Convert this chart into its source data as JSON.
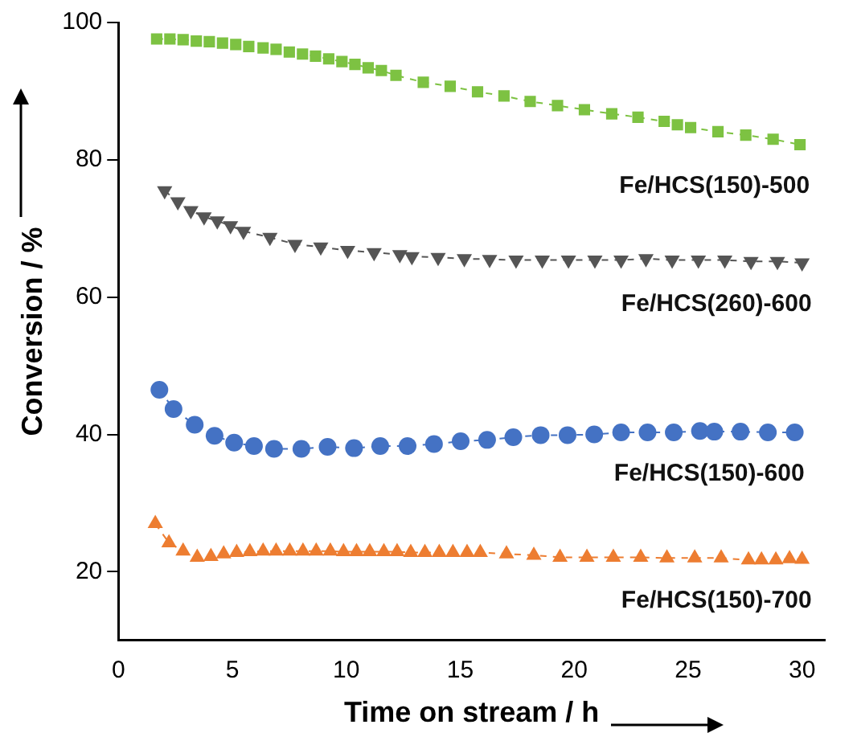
{
  "chart_data": {
    "type": "line",
    "xlabel": "Time on stream / h",
    "ylabel": "Conversion / %",
    "xlim": [
      0,
      31
    ],
    "ylim": [
      10,
      100
    ],
    "xticks": [
      0,
      5,
      10,
      15,
      20,
      25,
      30
    ],
    "yticks": [
      20,
      40,
      60,
      80,
      100
    ],
    "grid": false,
    "legend": false,
    "line_style": "dashed",
    "series": [
      {
        "name": "Fe/HCS(150)-500",
        "color": "#7dc242",
        "marker": "square",
        "x": [
          1.68,
          2.26,
          2.84,
          3.42,
          3.99,
          4.57,
          5.15,
          5.72,
          6.35,
          6.92,
          7.5,
          8.08,
          8.65,
          9.23,
          9.81,
          10.38,
          10.96,
          11.54,
          12.18,
          13.38,
          14.56,
          15.76,
          16.92,
          18.07,
          19.27,
          20.45,
          21.65,
          22.8,
          23.95,
          24.53,
          25.11,
          26.31,
          27.53,
          28.73,
          29.91
        ],
        "values": [
          97.6,
          97.6,
          97.5,
          97.3,
          97.2,
          97.0,
          96.8,
          96.5,
          96.3,
          96.1,
          95.7,
          95.4,
          95.1,
          94.7,
          94.3,
          93.9,
          93.4,
          93.0,
          92.3,
          91.3,
          90.7,
          89.9,
          89.3,
          88.5,
          87.9,
          87.3,
          86.7,
          86.2,
          85.6,
          85.1,
          84.7,
          84.1,
          83.6,
          83.0,
          82.2
        ]
      },
      {
        "name": "Fe/HCS(260)-600",
        "color": "#555555",
        "marker": "triangle-down",
        "x": [
          2.03,
          2.61,
          3.18,
          3.76,
          4.34,
          4.92,
          5.49,
          6.65,
          7.75,
          8.88,
          10.06,
          11.22,
          12.35,
          12.88,
          14.03,
          15.18,
          16.29,
          17.45,
          18.6,
          19.75,
          20.91,
          22.06,
          23.15,
          24.3,
          25.45,
          26.61,
          27.76,
          28.92,
          30.0
        ],
        "values": [
          75.5,
          73.9,
          72.6,
          71.7,
          71.1,
          70.4,
          69.6,
          68.7,
          67.7,
          67.3,
          66.8,
          66.5,
          66.2,
          65.9,
          65.8,
          65.6,
          65.5,
          65.4,
          65.4,
          65.4,
          65.4,
          65.4,
          65.6,
          65.4,
          65.4,
          65.4,
          65.2,
          65.2,
          65.0
        ]
      },
      {
        "name": "Fe/HCS(150)-600",
        "color": "#4472c4",
        "marker": "circle",
        "x": [
          1.8,
          2.42,
          3.35,
          4.22,
          5.08,
          5.95,
          6.83,
          8.03,
          9.18,
          10.34,
          11.49,
          12.69,
          13.85,
          15.02,
          16.18,
          17.33,
          18.53,
          19.71,
          20.88,
          22.06,
          23.22,
          24.37,
          25.52,
          26.15,
          27.3,
          28.5,
          29.68
        ],
        "values": [
          46.5,
          43.7,
          41.4,
          39.8,
          38.8,
          38.3,
          37.9,
          37.9,
          38.2,
          38.0,
          38.3,
          38.3,
          38.6,
          39.0,
          39.2,
          39.6,
          39.9,
          39.9,
          40.0,
          40.3,
          40.3,
          40.3,
          40.5,
          40.4,
          40.4,
          40.3,
          40.3
        ]
      },
      {
        "name": "Fe/HCS(150)-700",
        "color": "#ed7d31",
        "marker": "triangle",
        "x": [
          1.62,
          2.22,
          2.84,
          3.46,
          4.06,
          4.62,
          5.19,
          5.77,
          6.35,
          6.92,
          7.52,
          8.1,
          8.68,
          9.3,
          9.88,
          10.45,
          11.03,
          11.65,
          12.23,
          12.83,
          13.45,
          14.08,
          14.68,
          15.3,
          15.88,
          17.03,
          18.23,
          19.38,
          20.56,
          21.72,
          22.92,
          24.07,
          25.29,
          26.45,
          27.65,
          28.22,
          28.85,
          29.45,
          30.0
        ],
        "values": [
          27.0,
          24.2,
          23.0,
          22.1,
          22.2,
          22.6,
          22.8,
          22.9,
          23.0,
          23.0,
          23.0,
          23.0,
          23.0,
          23.0,
          22.9,
          22.9,
          22.9,
          22.9,
          22.9,
          22.8,
          22.8,
          22.8,
          22.8,
          22.8,
          22.8,
          22.6,
          22.4,
          22.1,
          22.1,
          22.1,
          22.1,
          22.0,
          22.0,
          22.0,
          21.7,
          21.7,
          21.7,
          21.9,
          21.8
        ]
      }
    ]
  }
}
